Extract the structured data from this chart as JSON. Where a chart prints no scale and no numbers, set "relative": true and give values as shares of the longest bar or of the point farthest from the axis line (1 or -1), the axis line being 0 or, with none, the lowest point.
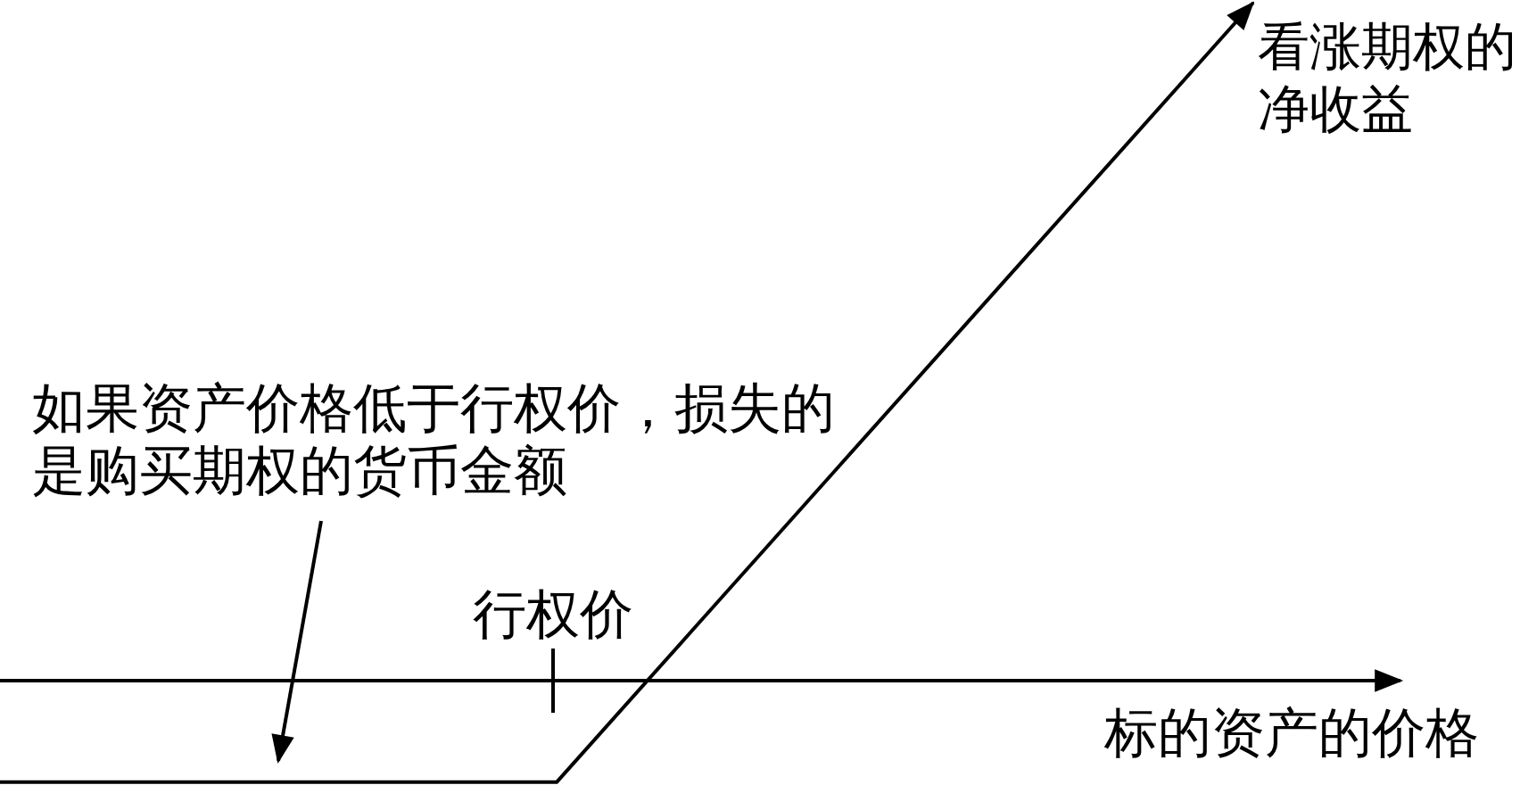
{
  "chart_data": {
    "type": "line",
    "relative": true,
    "categories": [
      null,
      null,
      null,
      null,
      null,
      null,
      null,
      null,
      null,
      null
    ],
    "series": [
      {
        "name": "看涨期权的净收益",
        "color": "#000000",
        "values": [
          -0.15,
          -0.15,
          -0.15,
          -0.15,
          -0.15,
          0.08,
          0.31,
          0.54,
          0.77,
          1
        ]
      }
    ],
    "xlabel": "标的资产的价格",
    "annotations": [
      "如果资产价格低于行权价，损失的是购买期权的货币金额",
      "行权价"
    ]
  }
}
